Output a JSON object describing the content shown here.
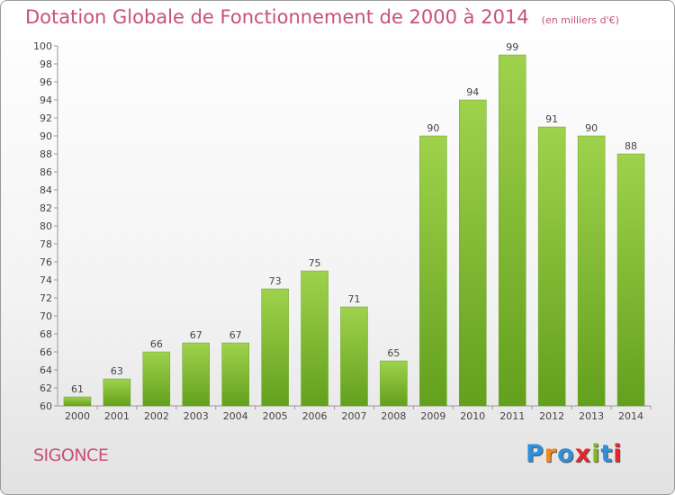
{
  "header": {
    "title": "Dotation Globale de Fonctionnement de 2000 à 2014",
    "subtitle": "(en milliers d'€)"
  },
  "commune": "SIGONCE",
  "logo": {
    "text": "Proxiti",
    "letter_colors": [
      "#2f8fd8",
      "#f08a1c",
      "#2f8fd8",
      "#e8262a",
      "#7dbb1e",
      "#2f8fd8",
      "#e8262a"
    ]
  },
  "chart_data": {
    "type": "bar",
    "categories": [
      "2000",
      "2001",
      "2002",
      "2003",
      "2004",
      "2005",
      "2006",
      "2007",
      "2008",
      "2009",
      "2010",
      "2011",
      "2012",
      "2013",
      "2014"
    ],
    "values": [
      61,
      63,
      66,
      67,
      67,
      73,
      75,
      71,
      65,
      90,
      94,
      99,
      91,
      90,
      88
    ],
    "ylim": [
      60,
      100
    ],
    "ytick_step": 2,
    "grid": false,
    "bar_color": "#8cc63f",
    "bar_color_dark": "#6aa322"
  }
}
